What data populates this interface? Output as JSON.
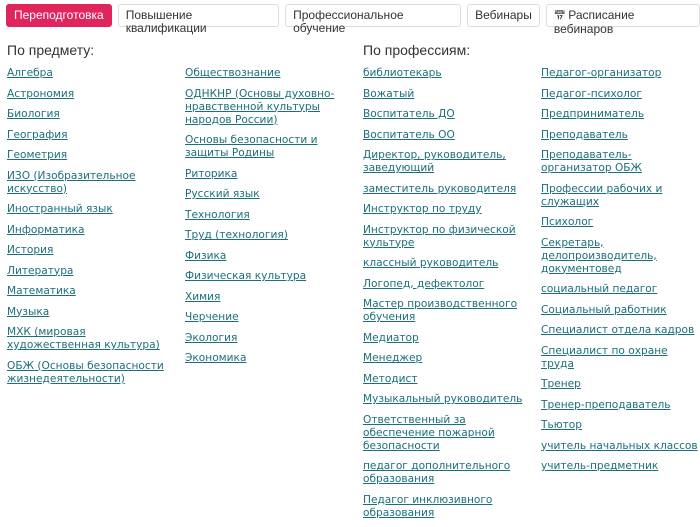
{
  "tabs": [
    {
      "label": "Переподготовка",
      "active": true
    },
    {
      "label": "Повышение квалификации"
    },
    {
      "label": "Профессиональное обучение"
    },
    {
      "label": "Вебинары"
    },
    {
      "label": "Расписание вебинаров",
      "icon": "calendar-icon"
    }
  ],
  "subjects_heading": "По предмету:",
  "professions_heading": "По профессиям:",
  "subjects_col1": [
    "Алгебра",
    "Астрономия",
    "Биология",
    "География",
    "Геометрия",
    "ИЗО (Изобразительное искусство)",
    "Иностранный язык",
    "Информатика",
    "История",
    "Литература",
    "Математика",
    "Музыка",
    "МХК (мировая художественная культура)",
    "ОБЖ (Основы безопасности жизнедеятельности)"
  ],
  "subjects_col2": [
    "Обществознание",
    "ОДНКНР (Основы духовно-нравственной культуры народов России)",
    "Основы безопасности и защиты Родины",
    "Риторика",
    "Русский язык",
    "Технология",
    "Труд (технология)",
    "Физика",
    "Физическая культура",
    "Химия",
    "Черчение",
    "Экология",
    "Экономика"
  ],
  "professions_col1": [
    "библиотекарь",
    "Вожатый",
    "Воспитатель ДО",
    "Воспитатель ОО",
    "Директор, руководитель, заведующий",
    "заместитель руководителя",
    "Инструктор по труду",
    "Инструктор по физической культуре",
    "классный руководитель",
    "Логопед, дефектолог",
    "Мастер производственного обучения",
    "Медиатор",
    "Менеджер",
    "Методист",
    "Музыкальный руководитель",
    "Ответственный за обеспечение пожарной безопасности",
    "педагог дополнительного образования",
    "Педагог инклюзивного образования"
  ],
  "professions_col2": [
    "Педагог-организатор",
    "Педагог-психолог",
    "Предприниматель",
    "Преподаватель",
    "Преподаватель-организатор ОБЖ",
    "Профессии рабочих и служащих",
    "Психолог",
    "Секретарь, делопроизводитель, документовед",
    "социальный педагог",
    "Социальный работник",
    "Специалист отдела кадров",
    "Специалист по охране труда",
    "Тренер",
    "Тренер-преподаватель",
    "Тьютор",
    "учитель начальных классов",
    "учитель-предметник"
  ]
}
